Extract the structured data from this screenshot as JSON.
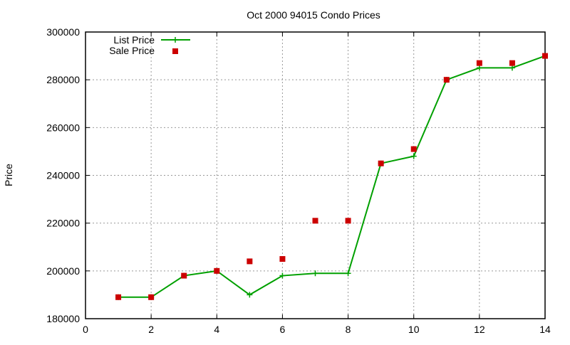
{
  "chart_data": {
    "type": "line",
    "title": "Oct 2000 94015 Condo Prices",
    "xlabel": "",
    "ylabel": "Price",
    "xlim": [
      0,
      14
    ],
    "ylim": [
      180000,
      300000
    ],
    "xticks": [
      0,
      2,
      4,
      6,
      8,
      10,
      12,
      14
    ],
    "yticks": [
      180000,
      200000,
      220000,
      240000,
      260000,
      280000,
      300000
    ],
    "grid": true,
    "legend_position": "top-left",
    "x": [
      1,
      2,
      3,
      4,
      5,
      6,
      7,
      8,
      9,
      10,
      11,
      12,
      13,
      14
    ],
    "series": [
      {
        "name": "List Price",
        "style": "linespoints",
        "color": "#00a000",
        "values": [
          189000,
          189000,
          198000,
          200000,
          190000,
          198000,
          199000,
          199000,
          245000,
          248000,
          280000,
          285000,
          285000,
          290000
        ]
      },
      {
        "name": "Sale Price",
        "style": "points",
        "color": "#cc0000",
        "values": [
          189000,
          189000,
          198000,
          200000,
          204000,
          205000,
          221000,
          221000,
          245000,
          251000,
          280000,
          287000,
          287000,
          290000
        ]
      }
    ]
  }
}
